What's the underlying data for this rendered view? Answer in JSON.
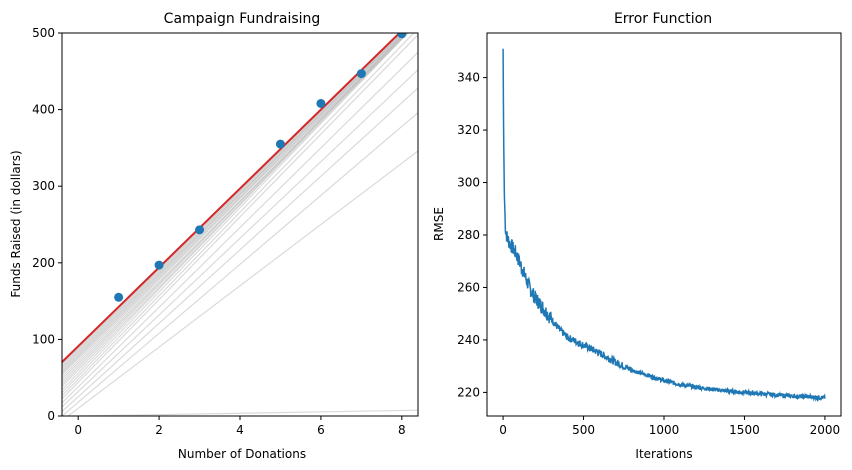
{
  "chart_data": [
    {
      "type": "scatter",
      "title": "Campaign Fundraising",
      "xlabel": "Number of Donations",
      "ylabel": "Funds Raised (in dollars)",
      "xlim": [
        -0.4,
        8.4
      ],
      "ylim": [
        0,
        500
      ],
      "xticks": [
        0,
        2,
        4,
        6,
        8
      ],
      "yticks": [
        0,
        100,
        200,
        300,
        400,
        500
      ],
      "points": {
        "x": [
          1,
          2,
          3,
          5,
          6,
          7,
          8
        ],
        "y": [
          155,
          197,
          243,
          355,
          408,
          447,
          499
        ]
      },
      "fit_line": {
        "intercept": 91,
        "slope": 51.5,
        "color": "#d62728"
      },
      "iteration_lines": {
        "color": "#bbbbbb",
        "lines": [
          [
            0,
            0.9
          ],
          [
            10,
            40
          ],
          [
            18,
            45
          ],
          [
            25,
            48
          ],
          [
            32,
            50
          ],
          [
            38,
            52
          ],
          [
            44,
            54
          ],
          [
            48,
            54.5
          ],
          [
            52,
            55
          ],
          [
            56,
            55
          ],
          [
            60,
            54
          ],
          [
            63,
            54
          ],
          [
            66,
            53.5
          ],
          [
            69,
            53
          ],
          [
            72,
            53
          ],
          [
            75,
            52.5
          ],
          [
            77,
            52.5
          ],
          [
            79,
            52.5
          ],
          [
            81,
            52.2
          ],
          [
            83,
            52
          ],
          [
            85,
            52
          ],
          [
            87,
            51.8
          ],
          [
            89,
            51.7
          ],
          [
            90,
            51.6
          ]
        ]
      },
      "point_color": "#1f77b4"
    },
    {
      "type": "line",
      "title": "Error Function",
      "xlabel": "Iterations",
      "ylabel": "RMSE",
      "xlim": [
        -100,
        2100
      ],
      "ylim": [
        211,
        357
      ],
      "xticks": [
        0,
        500,
        1000,
        1500,
        2000
      ],
      "yticks": [
        220,
        240,
        260,
        280,
        300,
        320,
        340
      ],
      "color": "#1f77b4",
      "anchors": {
        "x": [
          0,
          3,
          8,
          15,
          25,
          40,
          60,
          80,
          100,
          120,
          150,
          180,
          200,
          250,
          300,
          350,
          400,
          500,
          600,
          700,
          800,
          900,
          1000,
          1100,
          1200,
          1300,
          1400,
          1500,
          1600,
          1700,
          1800,
          1900,
          2000
        ],
        "y": [
          351,
          320,
          295,
          282,
          279,
          277,
          275,
          273,
          270,
          267,
          262,
          258,
          256,
          252,
          248,
          244,
          241,
          238,
          235,
          231.5,
          228.5,
          226.5,
          224.5,
          223,
          222,
          221.2,
          220.5,
          220,
          219.5,
          219,
          218.6,
          218.3,
          218
        ]
      }
    }
  ]
}
